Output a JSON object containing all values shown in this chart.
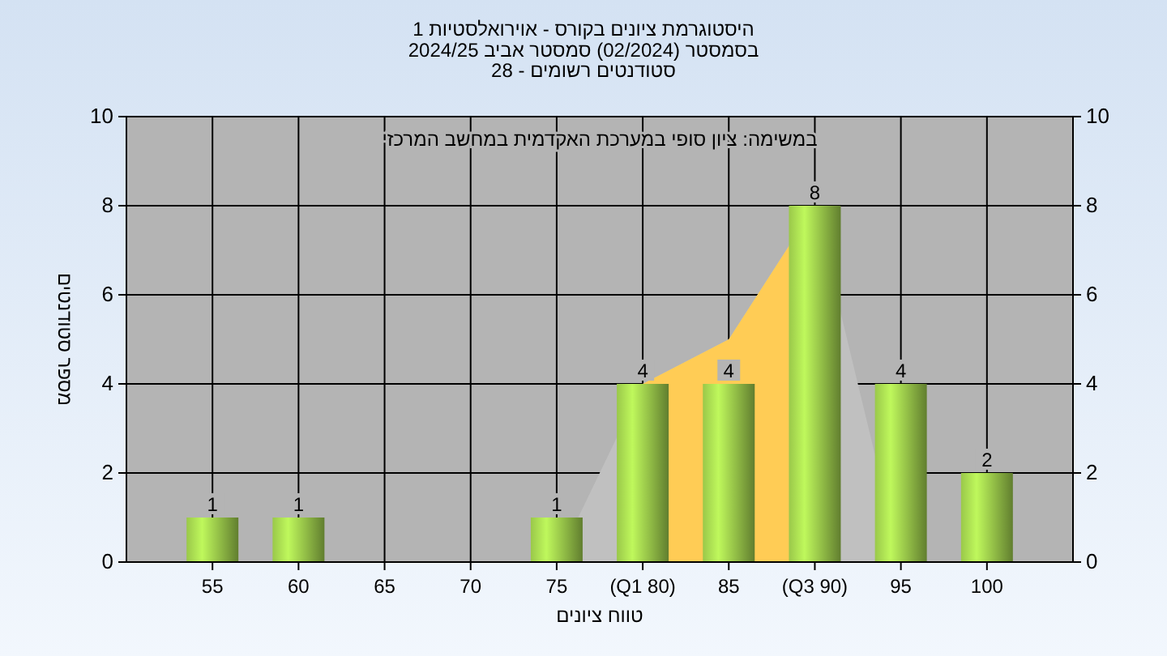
{
  "chart_data": {
    "type": "bar",
    "title": "היסטוגרמת ציונים בקורס - אוירואלסטיות 1",
    "subtitle": "בסמסטר  (02/2024)  סמסטר אביב 2024/25\nסטודנטים רשומים - 28",
    "xlabel": "טווח ציונים",
    "ylabel": "מספר סטודנטים",
    "annotations": [
      "במשימה: ציון סופי במערכת האקדמית במחשב המרכזי"
    ],
    "categories": [
      "55",
      "60",
      "65",
      "70",
      "75",
      "(Q1 80)",
      "85",
      "(Q3 90)",
      "95",
      "100"
    ],
    "series": [
      {
        "type": "area",
        "color": "#c0c0c0",
        "values": [
          null,
          null,
          null,
          null,
          0,
          4,
          5,
          8,
          0,
          null
        ]
      },
      {
        "type": "area",
        "color": "#ffcc55",
        "values": [
          null,
          null,
          null,
          null,
          null,
          4,
          5,
          8,
          null,
          null
        ]
      },
      {
        "color": "#9ac84a",
        "values": [
          1,
          1,
          0,
          0,
          1,
          4,
          4,
          8,
          4,
          2
        ],
        "value_labels": [
          "1",
          "1",
          null,
          null,
          "1",
          "4",
          "4",
          "8",
          "4",
          "2"
        ]
      }
    ],
    "ylim": [
      0,
      10
    ],
    "yticks": [
      0,
      2,
      4,
      6,
      8,
      10
    ],
    "y2lim": [
      0,
      10
    ],
    "y2ticks": [
      0,
      2,
      4,
      6,
      8,
      10
    ],
    "grid": true
  }
}
